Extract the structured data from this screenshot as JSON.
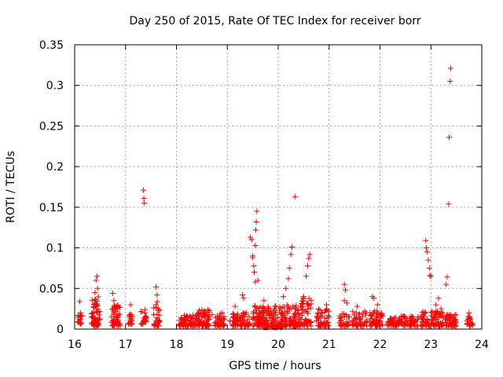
{
  "chart_data": {
    "type": "scatter",
    "title": "Day 250 of 2015, Rate Of TEC Index for receiver borr",
    "xlabel": "GPS time / hours",
    "ylabel": "ROTI / TECUs",
    "xlim": [
      16,
      24
    ],
    "ylim": [
      0,
      0.35
    ],
    "x_ticks": [
      16,
      17,
      18,
      19,
      20,
      21,
      22,
      23,
      24
    ],
    "y_ticks": [
      0,
      0.05,
      0.1,
      0.15,
      0.2,
      0.25,
      0.3,
      0.35
    ],
    "y_tick_labels": [
      "0",
      "0.05",
      "0.1",
      "0.15",
      "0.2",
      "0.25",
      "0.3",
      "0.35"
    ],
    "grid": true,
    "marker": "+",
    "color": "#ff0000",
    "series": [
      {
        "name": "ROTI",
        "points": [
          [
            16.1,
            0.034
          ],
          [
            16.1,
            0.016
          ],
          [
            16.1,
            0.012
          ],
          [
            16.1,
            0.01
          ],
          [
            16.35,
            0.02
          ],
          [
            16.38,
            0.03
          ],
          [
            16.4,
            0.045
          ],
          [
            16.42,
            0.06
          ],
          [
            16.44,
            0.065
          ],
          [
            16.45,
            0.05
          ],
          [
            16.4,
            0.012
          ],
          [
            16.42,
            0.008
          ],
          [
            16.45,
            0.025
          ],
          [
            16.75,
            0.044
          ],
          [
            16.77,
            0.035
          ],
          [
            16.8,
            0.025
          ],
          [
            16.82,
            0.015
          ],
          [
            16.78,
            0.01
          ],
          [
            16.85,
            0.008
          ],
          [
            17.1,
            0.03
          ],
          [
            17.1,
            0.018
          ],
          [
            17.12,
            0.01
          ],
          [
            17.35,
            0.171
          ],
          [
            17.36,
            0.161
          ],
          [
            17.37,
            0.155
          ],
          [
            17.38,
            0.024
          ],
          [
            17.4,
            0.015
          ],
          [
            17.36,
            0.01
          ],
          [
            17.6,
            0.052
          ],
          [
            17.62,
            0.042
          ],
          [
            17.6,
            0.03
          ],
          [
            17.62,
            0.018
          ],
          [
            17.6,
            0.01
          ],
          [
            18.15,
            0.012
          ],
          [
            18.3,
            0.014
          ],
          [
            18.45,
            0.016
          ],
          [
            18.55,
            0.022
          ],
          [
            18.6,
            0.01
          ],
          [
            18.7,
            0.018
          ],
          [
            18.85,
            0.015
          ],
          [
            18.9,
            0.02
          ],
          [
            19.05,
            0.01
          ],
          [
            19.15,
            0.028
          ],
          [
            19.2,
            0.015
          ],
          [
            19.3,
            0.042
          ],
          [
            19.32,
            0.038
          ],
          [
            19.45,
            0.113
          ],
          [
            19.48,
            0.11
          ],
          [
            19.5,
            0.09
          ],
          [
            19.5,
            0.088
          ],
          [
            19.52,
            0.078
          ],
          [
            19.53,
            0.07
          ],
          [
            19.55,
            0.058
          ],
          [
            19.55,
            0.103
          ],
          [
            19.56,
            0.122
          ],
          [
            19.57,
            0.132
          ],
          [
            19.58,
            0.145
          ],
          [
            19.6,
            0.06
          ],
          [
            19.65,
            0.02
          ],
          [
            19.72,
            0.035
          ],
          [
            19.8,
            0.025
          ],
          [
            19.9,
            0.02
          ],
          [
            19.95,
            0.01
          ],
          [
            20.1,
            0.04
          ],
          [
            20.15,
            0.05
          ],
          [
            20.2,
            0.062
          ],
          [
            20.22,
            0.075
          ],
          [
            20.25,
            0.092
          ],
          [
            20.27,
            0.101
          ],
          [
            20.33,
            0.163
          ],
          [
            20.4,
            0.02
          ],
          [
            20.5,
            0.04
          ],
          [
            20.55,
            0.065
          ],
          [
            20.58,
            0.078
          ],
          [
            20.6,
            0.087
          ],
          [
            20.62,
            0.092
          ],
          [
            20.75,
            0.01
          ],
          [
            20.85,
            0.02
          ],
          [
            20.95,
            0.03
          ],
          [
            21.0,
            0.015
          ],
          [
            21.3,
            0.055
          ],
          [
            21.32,
            0.048
          ],
          [
            21.3,
            0.035
          ],
          [
            21.35,
            0.032
          ],
          [
            21.3,
            0.015
          ],
          [
            21.55,
            0.028
          ],
          [
            21.6,
            0.015
          ],
          [
            21.7,
            0.022
          ],
          [
            21.85,
            0.04
          ],
          [
            21.88,
            0.038
          ],
          [
            21.95,
            0.03
          ],
          [
            22.0,
            0.015
          ],
          [
            22.25,
            0.012
          ],
          [
            22.45,
            0.015
          ],
          [
            22.6,
            0.01
          ],
          [
            22.75,
            0.015
          ],
          [
            22.9,
            0.109
          ],
          [
            22.91,
            0.1
          ],
          [
            22.93,
            0.095
          ],
          [
            22.95,
            0.085
          ],
          [
            22.97,
            0.075
          ],
          [
            22.98,
            0.066
          ],
          [
            23.0,
            0.065
          ],
          [
            23.05,
            0.015
          ],
          [
            23.1,
            0.03
          ],
          [
            23.15,
            0.038
          ],
          [
            23.2,
            0.025
          ],
          [
            23.3,
            0.055
          ],
          [
            23.32,
            0.064
          ],
          [
            23.35,
            0.154
          ],
          [
            23.36,
            0.236
          ],
          [
            23.38,
            0.305
          ],
          [
            23.39,
            0.321
          ],
          [
            23.4,
            0.015
          ],
          [
            23.45,
            0.01
          ],
          [
            23.75,
            0.02
          ],
          [
            23.77,
            0.012
          ],
          [
            23.78,
            0.008
          ]
        ]
      }
    ],
    "clusters": [
      {
        "x": [
          16.05,
          16.15
        ],
        "y": [
          0.006,
          0.02
        ],
        "n": 14
      },
      {
        "x": [
          16.33,
          16.5
        ],
        "y": [
          0.004,
          0.04
        ],
        "n": 60
      },
      {
        "x": [
          16.72,
          16.9
        ],
        "y": [
          0.004,
          0.03
        ],
        "n": 50
      },
      {
        "x": [
          17.05,
          17.15
        ],
        "y": [
          0.006,
          0.02
        ],
        "n": 16
      },
      {
        "x": [
          17.3,
          17.42
        ],
        "y": [
          0.006,
          0.022
        ],
        "n": 20
      },
      {
        "x": [
          17.55,
          17.67
        ],
        "y": [
          0.004,
          0.035
        ],
        "n": 26
      },
      {
        "x": [
          18.05,
          18.35
        ],
        "y": [
          0.004,
          0.018
        ],
        "n": 60
      },
      {
        "x": [
          18.35,
          18.65
        ],
        "y": [
          0.004,
          0.024
        ],
        "n": 80
      },
      {
        "x": [
          18.75,
          18.95
        ],
        "y": [
          0.004,
          0.02
        ],
        "n": 40
      },
      {
        "x": [
          19.1,
          19.45
        ],
        "y": [
          0.004,
          0.022
        ],
        "n": 80
      },
      {
        "x": [
          19.5,
          19.7
        ],
        "y": [
          0.004,
          0.03
        ],
        "n": 60
      },
      {
        "x": [
          19.7,
          20.1
        ],
        "y": [
          0.002,
          0.03
        ],
        "n": 120
      },
      {
        "x": [
          20.1,
          20.4
        ],
        "y": [
          0.004,
          0.03
        ],
        "n": 80
      },
      {
        "x": [
          20.4,
          20.65
        ],
        "y": [
          0.004,
          0.045
        ],
        "n": 60
      },
      {
        "x": [
          20.75,
          21.0
        ],
        "y": [
          0.004,
          0.025
        ],
        "n": 50
      },
      {
        "x": [
          21.2,
          21.4
        ],
        "y": [
          0.004,
          0.02
        ],
        "n": 30
      },
      {
        "x": [
          21.45,
          21.75
        ],
        "y": [
          0.004,
          0.022
        ],
        "n": 50
      },
      {
        "x": [
          21.8,
          22.05
        ],
        "y": [
          0.004,
          0.025
        ],
        "n": 60
      },
      {
        "x": [
          22.15,
          22.75
        ],
        "y": [
          0.004,
          0.016
        ],
        "n": 100
      },
      {
        "x": [
          22.8,
          23.25
        ],
        "y": [
          0.004,
          0.022
        ],
        "n": 90
      },
      {
        "x": [
          23.28,
          23.5
        ],
        "y": [
          0.004,
          0.018
        ],
        "n": 50
      },
      {
        "x": [
          23.7,
          23.82
        ],
        "y": [
          0.004,
          0.016
        ],
        "n": 20
      }
    ]
  }
}
